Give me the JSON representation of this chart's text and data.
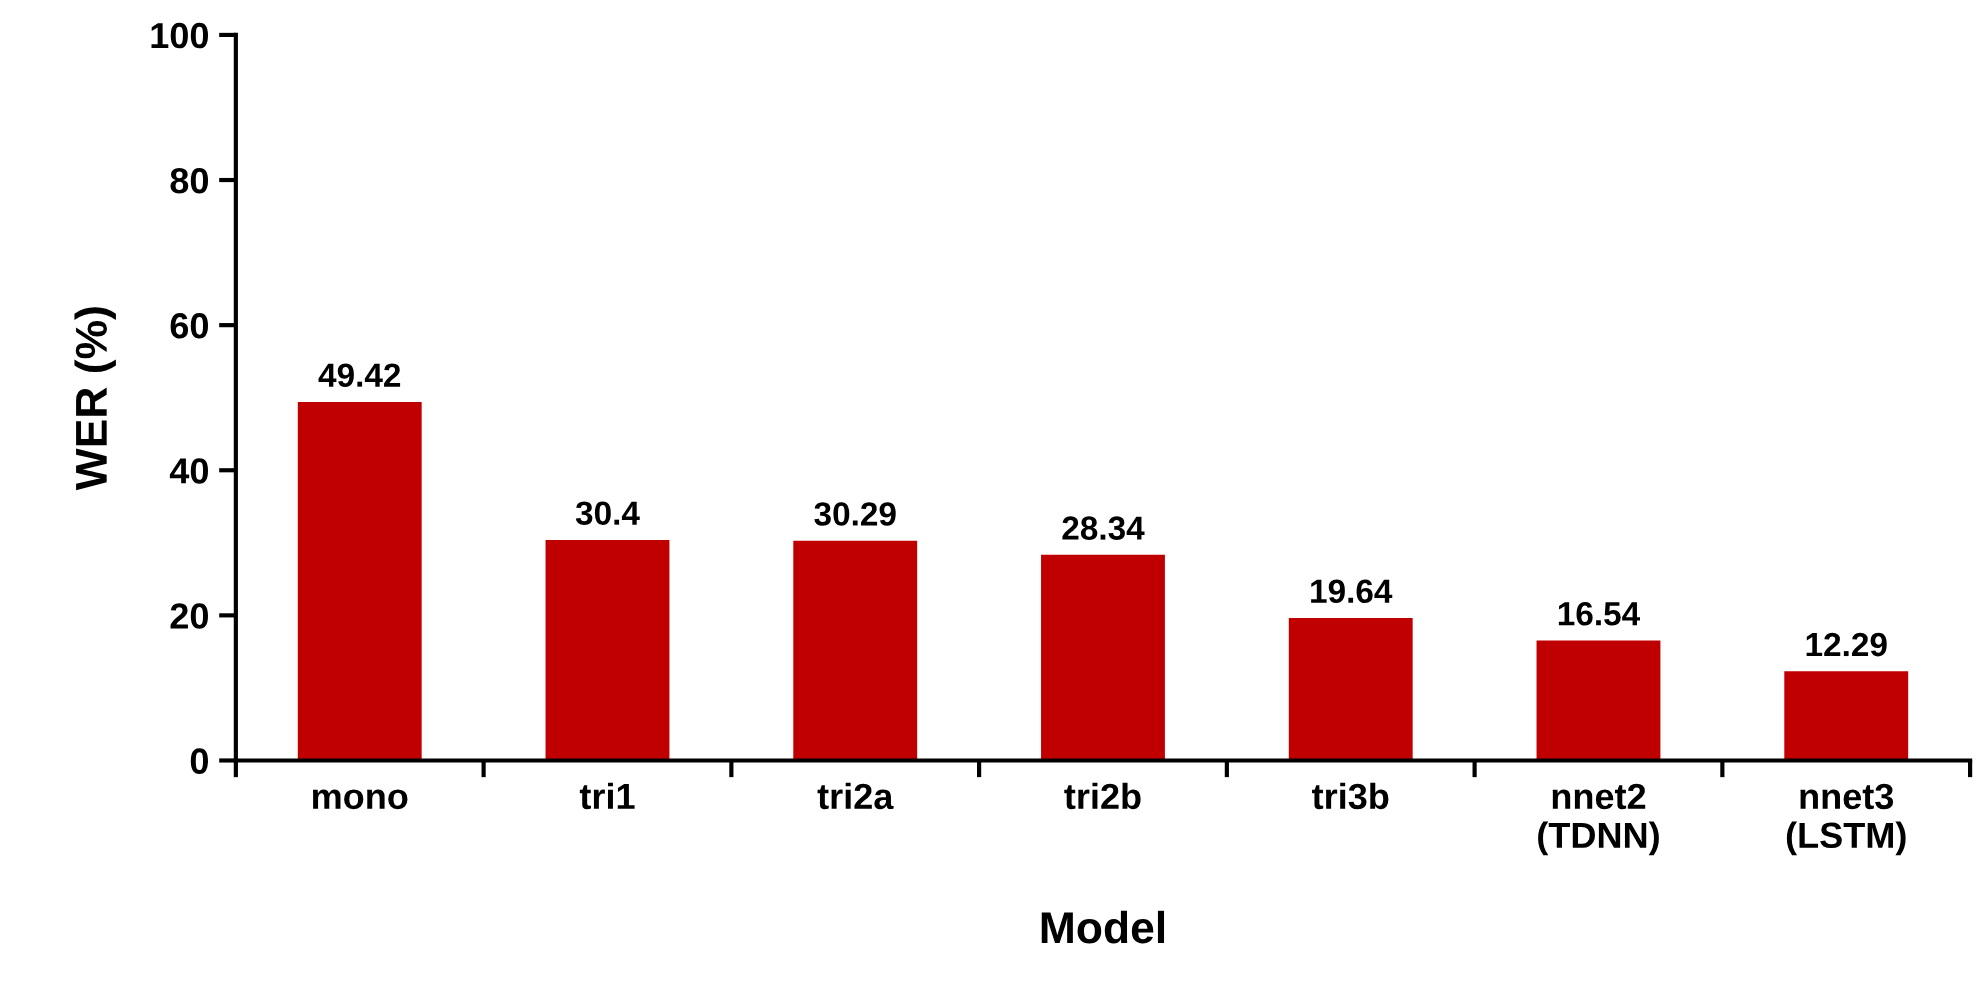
{
  "chart_data": {
    "type": "bar",
    "xlabel": "Model",
    "ylabel": "WER (%)",
    "categories": [
      "mono",
      "tri1",
      "tri2a",
      "tri2b",
      "tri3b",
      "nnet2\n(TDNN)",
      "nnet3\n(LSTM)"
    ],
    "values": [
      49.42,
      30.4,
      30.29,
      28.34,
      19.64,
      16.54,
      12.29
    ],
    "color": "#c00000",
    "ylim": [
      0,
      100
    ],
    "yticks": [
      0,
      20,
      40,
      60,
      80,
      100
    ],
    "data_labels": true,
    "grid": false,
    "legend": false
  }
}
